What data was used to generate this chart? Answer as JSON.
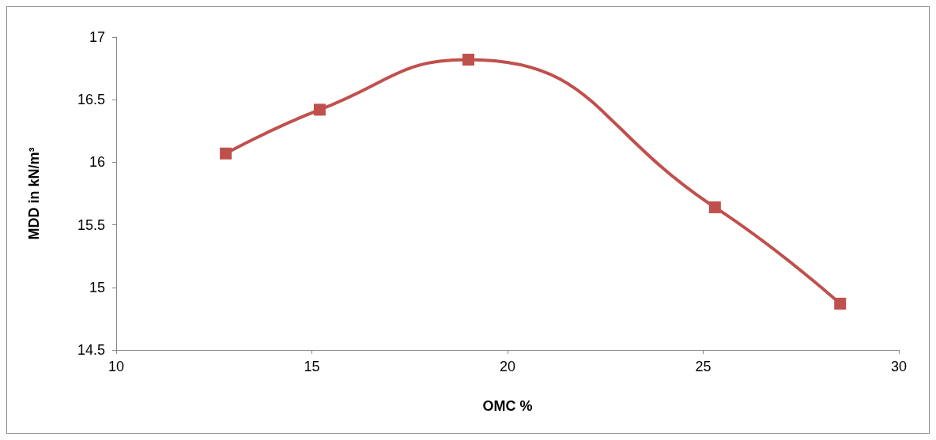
{
  "chart_data": {
    "type": "line",
    "xlabel": "OMC %",
    "ylabel": "MDD in kN/m³",
    "x": [
      12.8,
      15.2,
      19.0,
      25.3,
      28.5
    ],
    "series": [
      {
        "color": "#c0504d",
        "values": [
          16.07,
          16.42,
          16.82,
          15.64,
          14.87
        ]
      }
    ],
    "xlim": [
      10,
      30
    ],
    "xticks": [
      10,
      15,
      20,
      25,
      30
    ],
    "ylim": [
      14.5,
      17
    ],
    "yticks": [
      14.5,
      15,
      15.5,
      16,
      16.5,
      17
    ],
    "grid": false,
    "marker": "square",
    "line_style": "solid"
  }
}
